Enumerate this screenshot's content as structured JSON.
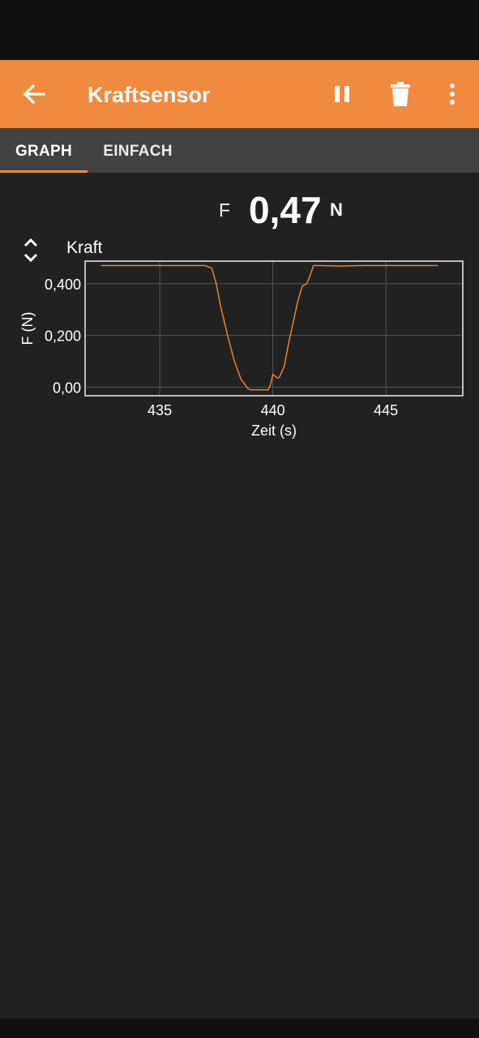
{
  "app_bar": {
    "title": "Kraftsensor",
    "back_icon": "arrow-left-icon",
    "pause_icon": "pause-icon",
    "delete_icon": "trash-icon",
    "more_icon": "more-vertical-icon",
    "color": "#ef8a3f"
  },
  "tabs": [
    {
      "label": "GRAPH",
      "active": true
    },
    {
      "label": "EINFACH",
      "active": false
    }
  ],
  "readout": {
    "symbol": "F",
    "value": "0,47",
    "unit": "N"
  },
  "graph": {
    "title": "Kraft",
    "expand_icon": "expand-collapse-icon"
  },
  "chart_data": {
    "type": "line",
    "title": "Kraft",
    "xlabel": "Zeit (s)",
    "ylabel": "F (N)",
    "xlim": [
      431.7,
      448.4
    ],
    "ylim": [
      -0.033,
      0.487
    ],
    "xticks": [
      435,
      440,
      445
    ],
    "xtick_labels": [
      "435",
      "440",
      "445"
    ],
    "yticks": [
      0.0,
      0.2,
      0.4
    ],
    "ytick_labels": [
      "0,00",
      "0,200",
      "0,400"
    ],
    "grid": true,
    "line_color": "#ef8a3f",
    "series": [
      {
        "x": [
          432.4,
          437.0,
          437.3,
          437.5,
          437.7,
          438.0,
          438.3,
          438.6,
          438.9,
          439.0,
          439.3,
          439.6,
          439.8,
          439.9,
          440.0,
          440.2,
          440.3,
          440.5,
          440.7,
          440.9,
          441.1,
          441.3,
          441.5,
          441.6,
          441.8,
          442.0,
          443.0,
          444.0,
          446.0,
          447.3
        ],
        "y": [
          0.47,
          0.47,
          0.46,
          0.4,
          0.31,
          0.2,
          0.1,
          0.03,
          -0.005,
          -0.01,
          -0.01,
          -0.01,
          -0.01,
          0.01,
          0.05,
          0.035,
          0.04,
          0.08,
          0.17,
          0.25,
          0.33,
          0.39,
          0.4,
          0.42,
          0.47,
          0.47,
          0.468,
          0.47,
          0.47,
          0.47
        ]
      }
    ]
  }
}
